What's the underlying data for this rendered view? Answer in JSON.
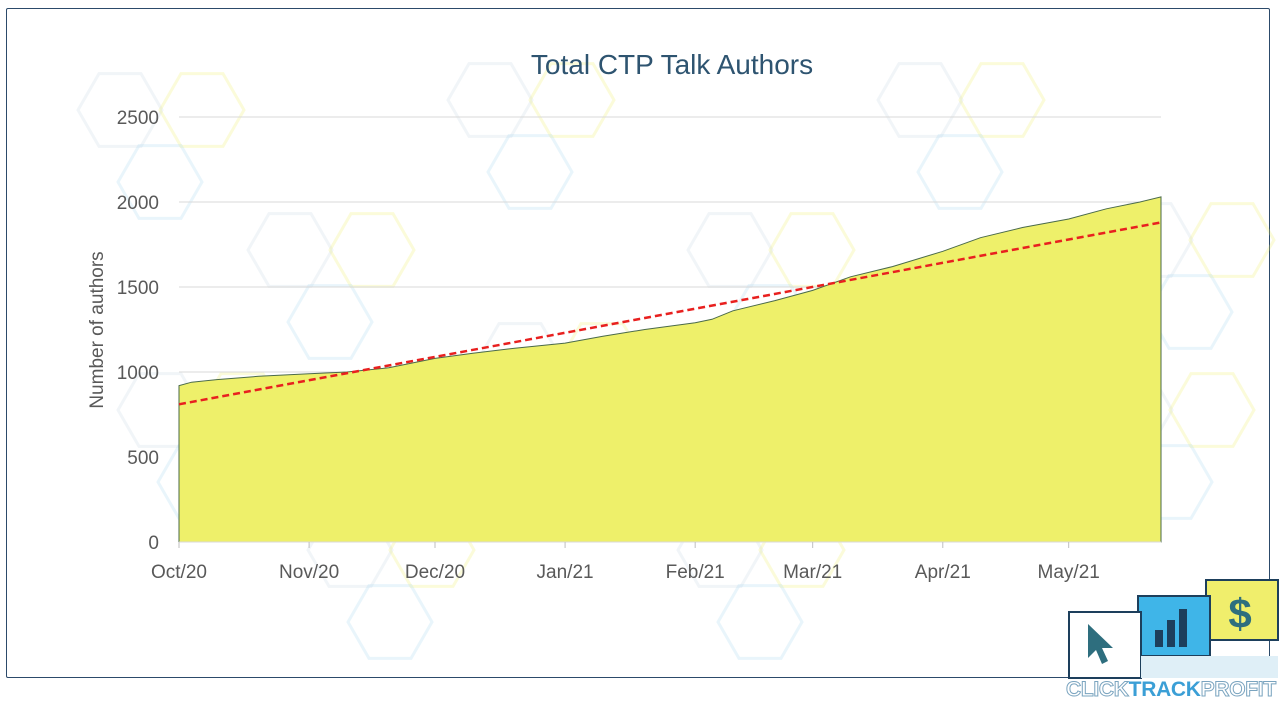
{
  "chart_data": {
    "type": "area",
    "title": "Total CTP Talk Authors",
    "xlabel": "",
    "ylabel": "Number of authors",
    "x_ticks": [
      "Oct/20",
      "Nov/20",
      "Dec/20",
      "Jan/21",
      "Feb/21",
      "Mar/21",
      "Apr/21",
      "May/21"
    ],
    "ylim": [
      0,
      2500
    ],
    "y_ticks": [
      "0",
      "500",
      "1000",
      "1500",
      "2000",
      "2500"
    ],
    "x_range": [
      "2020-10-01",
      "2021-05-23"
    ],
    "grid": "horizontal",
    "series": [
      {
        "type": "area",
        "fill_color": "#eef06a",
        "points": [
          [
            "2020-10-01",
            920
          ],
          [
            "2020-10-04",
            940
          ],
          [
            "2020-10-10",
            955
          ],
          [
            "2020-10-20",
            975
          ],
          [
            "2020-11-01",
            990
          ],
          [
            "2020-11-10",
            1000
          ],
          [
            "2020-11-20",
            1025
          ],
          [
            "2020-12-01",
            1080
          ],
          [
            "2020-12-10",
            1110
          ],
          [
            "2020-12-20",
            1140
          ],
          [
            "2021-01-01",
            1170
          ],
          [
            "2021-01-10",
            1210
          ],
          [
            "2021-01-20",
            1250
          ],
          [
            "2021-02-01",
            1290
          ],
          [
            "2021-02-05",
            1310
          ],
          [
            "2021-02-10",
            1360
          ],
          [
            "2021-02-20",
            1420
          ],
          [
            "2021-03-01",
            1480
          ],
          [
            "2021-03-10",
            1560
          ],
          [
            "2021-03-20",
            1620
          ],
          [
            "2021-04-01",
            1710
          ],
          [
            "2021-04-10",
            1790
          ],
          [
            "2021-04-20",
            1850
          ],
          [
            "2021-05-01",
            1900
          ],
          [
            "2021-05-10",
            1960
          ],
          [
            "2021-05-18",
            2000
          ],
          [
            "2021-05-23",
            2030
          ]
        ]
      },
      {
        "type": "trendline",
        "style": "dashed",
        "color": "#e8201f",
        "points": [
          [
            "2020-10-01",
            810
          ],
          [
            "2021-05-23",
            1880
          ]
        ]
      }
    ]
  },
  "logo": {
    "text_part1": "CLICK",
    "text_part2": "TRACK",
    "text_part3": "PROFIT",
    "colors": {
      "teal": "#2e6e7e",
      "blue": "#3fb5e8",
      "yellow": "#f0ee6c",
      "navy": "#1d3f5c"
    }
  }
}
